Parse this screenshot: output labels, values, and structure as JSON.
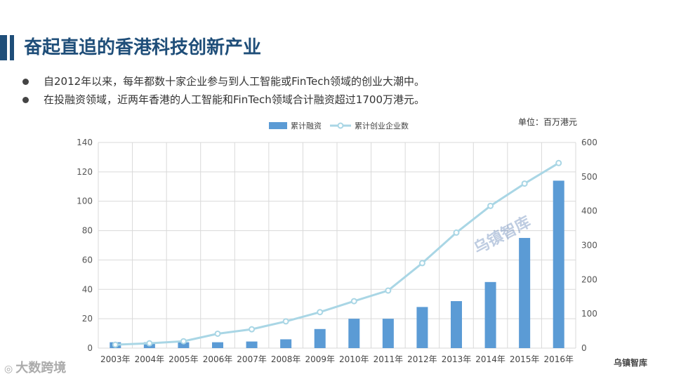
{
  "header": {
    "title": "奋起直追的香港科技创新产业"
  },
  "bullets": [
    "自2012年以来，每年都数十家企业参与到人工智能或FinTech领域的创业大潮中。",
    "在投融资领域，近两年香港的人工智能和FinTech领域合计融资超过1700万港元。"
  ],
  "unit_label": "单位：百万港元",
  "watermarks": {
    "left": "大数跨境",
    "center": "乌镇智库",
    "right": "乌镇智库"
  },
  "colors": {
    "title": "#1f4e79",
    "bar": "#5b9bd5",
    "line": "#a9d6e5",
    "grid": "#d9d9d9"
  },
  "chart_data": {
    "type": "bar",
    "categories": [
      "2003年",
      "2004年",
      "2005年",
      "2006年",
      "2007年",
      "2008年",
      "2009年",
      "2010年",
      "2011年",
      "2012年",
      "2013年",
      "2014年",
      "2015年",
      "2016年"
    ],
    "series": [
      {
        "name": "累计融资",
        "type": "bar",
        "axis": "left",
        "values": [
          4,
          4,
          4,
          4,
          4.5,
          6,
          13,
          20,
          20,
          28,
          32,
          45,
          75,
          114
        ]
      },
      {
        "name": "累计创业企业数",
        "type": "line",
        "axis": "right",
        "values": [
          10,
          14,
          20,
          42,
          55,
          78,
          105,
          137,
          168,
          248,
          337,
          415,
          480,
          540
        ]
      }
    ],
    "y_left": {
      "min": 0,
      "max": 140,
      "ticks": [
        0,
        20,
        40,
        60,
        80,
        100,
        120,
        140
      ]
    },
    "y_right": {
      "min": 0,
      "max": 600,
      "ticks": [
        0,
        100,
        200,
        300,
        400,
        500,
        600
      ]
    },
    "legend_position": "top-center",
    "grid": true
  }
}
